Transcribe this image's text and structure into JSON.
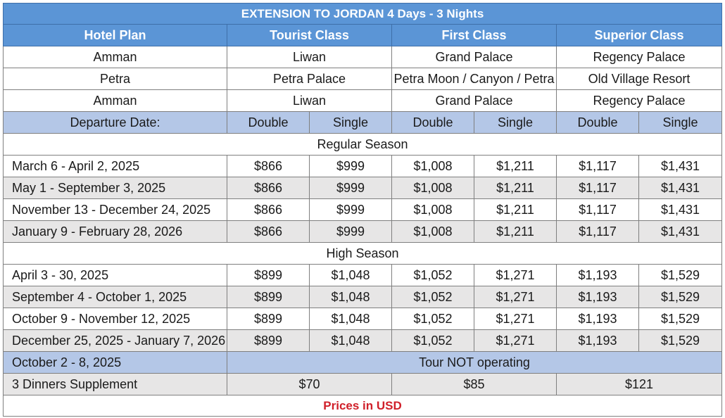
{
  "title": "EXTENSION TO JORDAN  4 Days - 3 Nights",
  "header": {
    "hotel_plan": "Hotel Plan",
    "classes": [
      "Tourist Class",
      "First Class",
      "Superior Class"
    ]
  },
  "hotels": [
    {
      "city": "Amman",
      "tourist": "Liwan",
      "first": "Grand Palace",
      "superior": "Regency Palace"
    },
    {
      "city": "Petra",
      "tourist": "Petra Palace",
      "first": "Petra Moon / Canyon / Petra",
      "superior": "Old Village Resort"
    },
    {
      "city": "Amman",
      "tourist": "Liwan",
      "first": "Grand Palace",
      "superior": "Regency Palace"
    }
  ],
  "subheader": {
    "departure": "Departure Date:",
    "double": "Double",
    "single": "Single"
  },
  "regular_season": {
    "label": "Regular Season",
    "rows": [
      {
        "date": "March 6  - April 2, 2025",
        "prices": [
          "$866",
          "$999",
          "$1,008",
          "$1,211",
          "$1,117",
          "$1,431"
        ]
      },
      {
        "date": "May 1 - September 3, 2025",
        "prices": [
          "$866",
          "$999",
          "$1,008",
          "$1,211",
          "$1,117",
          "$1,431"
        ]
      },
      {
        "date": "November 13 - December 24, 2025",
        "prices": [
          "$866",
          "$999",
          "$1,008",
          "$1,211",
          "$1,117",
          "$1,431"
        ]
      },
      {
        "date": "January 9 - February 28, 2026",
        "prices": [
          "$866",
          "$999",
          "$1,008",
          "$1,211",
          "$1,117",
          "$1,431"
        ]
      }
    ]
  },
  "high_season": {
    "label": "High Season",
    "rows": [
      {
        "date": "April 3 - 30, 2025",
        "prices": [
          "$899",
          "$1,048",
          "$1,052",
          "$1,271",
          "$1,193",
          "$1,529"
        ]
      },
      {
        "date": "September 4 - October 1, 2025",
        "prices": [
          "$899",
          "$1,048",
          "$1,052",
          "$1,271",
          "$1,193",
          "$1,529"
        ]
      },
      {
        "date": "October 9 - November 12, 2025",
        "prices": [
          "$899",
          "$1,048",
          "$1,052",
          "$1,271",
          "$1,193",
          "$1,529"
        ]
      },
      {
        "date": "December 25, 2025 - January 7, 2026",
        "prices": [
          "$899",
          "$1,048",
          "$1,052",
          "$1,271",
          "$1,193",
          "$1,529"
        ]
      }
    ]
  },
  "not_operating": {
    "date": "October 2 - 8, 2025",
    "text": "Tour NOT operating"
  },
  "dinners": {
    "label": "3 Dinners Supplement",
    "prices": [
      "$70",
      "$85",
      "$121"
    ]
  },
  "footer": "Prices in USD",
  "colors": {
    "header_blue": "#5b95d6",
    "subheader_blue": "#b4c7e7",
    "shaded_row": "#e7e6e6",
    "footer_red": "#d0202a"
  }
}
